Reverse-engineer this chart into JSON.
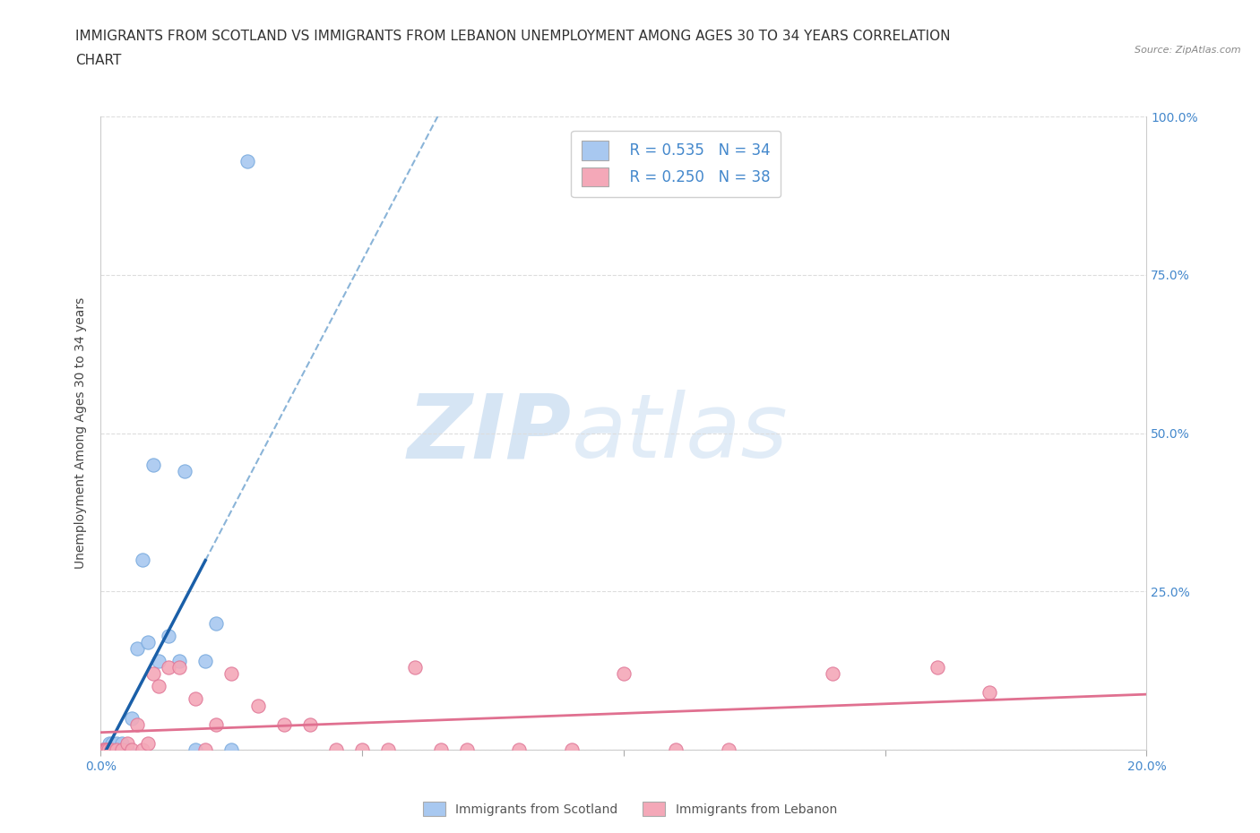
{
  "title_line1": "IMMIGRANTS FROM SCOTLAND VS IMMIGRANTS FROM LEBANON UNEMPLOYMENT AMONG AGES 30 TO 34 YEARS CORRELATION",
  "title_line2": "CHART",
  "source": "Source: ZipAtlas.com",
  "ylabel": "Unemployment Among Ages 30 to 34 years",
  "xlim": [
    0.0,
    0.2
  ],
  "ylim": [
    0.0,
    1.0
  ],
  "xticks": [
    0.0,
    0.05,
    0.1,
    0.15,
    0.2
  ],
  "yticks": [
    0.0,
    0.25,
    0.5,
    0.75,
    1.0
  ],
  "scotland_color": "#a8c8f0",
  "scotland_edge_color": "#7aabde",
  "lebanon_color": "#f4a8b8",
  "lebanon_edge_color": "#e07898",
  "scotland_line_color": "#1a5fa8",
  "lebanon_line_color": "#e07090",
  "dashed_line_color": "#8ab4d8",
  "watermark_zip": "ZIP",
  "watermark_atlas": "atlas",
  "watermark_color": "#d0e4f4",
  "legend_R_scotland": "R = 0.535",
  "legend_N_scotland": "N = 34",
  "legend_R_lebanon": "R = 0.250",
  "legend_N_lebanon": "N = 38",
  "legend_text_color": "#4488cc",
  "scotland_x": [
    0.0005,
    0.0007,
    0.0008,
    0.0009,
    0.001,
    0.0012,
    0.0013,
    0.0014,
    0.0015,
    0.0016,
    0.0017,
    0.0018,
    0.002,
    0.0022,
    0.0025,
    0.003,
    0.003,
    0.0035,
    0.004,
    0.005,
    0.006,
    0.007,
    0.008,
    0.009,
    0.01,
    0.011,
    0.013,
    0.015,
    0.016,
    0.018,
    0.02,
    0.022,
    0.025,
    0.028
  ],
  "scotland_y": [
    0.0,
    0.0,
    0.0,
    0.0,
    0.0,
    0.0,
    0.0,
    0.0,
    0.0,
    0.01,
    0.0,
    0.0,
    0.0,
    0.01,
    0.0,
    0.0,
    0.01,
    0.0,
    0.01,
    0.0,
    0.05,
    0.16,
    0.3,
    0.17,
    0.45,
    0.14,
    0.18,
    0.14,
    0.44,
    0.0,
    0.14,
    0.2,
    0.0,
    0.93
  ],
  "lebanon_x": [
    0.0005,
    0.0008,
    0.001,
    0.0012,
    0.0015,
    0.002,
    0.003,
    0.004,
    0.005,
    0.006,
    0.007,
    0.008,
    0.009,
    0.01,
    0.011,
    0.013,
    0.015,
    0.018,
    0.02,
    0.022,
    0.025,
    0.03,
    0.035,
    0.04,
    0.045,
    0.05,
    0.055,
    0.06,
    0.065,
    0.07,
    0.08,
    0.09,
    0.1,
    0.11,
    0.12,
    0.14,
    0.16,
    0.17
  ],
  "lebanon_y": [
    0.0,
    0.0,
    0.0,
    0.0,
    0.0,
    0.0,
    0.0,
    0.0,
    0.01,
    0.0,
    0.04,
    0.0,
    0.01,
    0.12,
    0.1,
    0.13,
    0.13,
    0.08,
    0.0,
    0.04,
    0.12,
    0.07,
    0.04,
    0.04,
    0.0,
    0.0,
    0.0,
    0.13,
    0.0,
    0.0,
    0.0,
    0.0,
    0.12,
    0.0,
    0.0,
    0.12,
    0.13,
    0.09
  ],
  "background_color": "#ffffff",
  "grid_color": "#dddddd",
  "title_fontsize": 11,
  "axis_label_fontsize": 10,
  "tick_fontsize": 10,
  "legend_fontsize": 12,
  "bottom_legend_label1": "Immigrants from Scotland",
  "bottom_legend_label2": "Immigrants from Lebanon"
}
